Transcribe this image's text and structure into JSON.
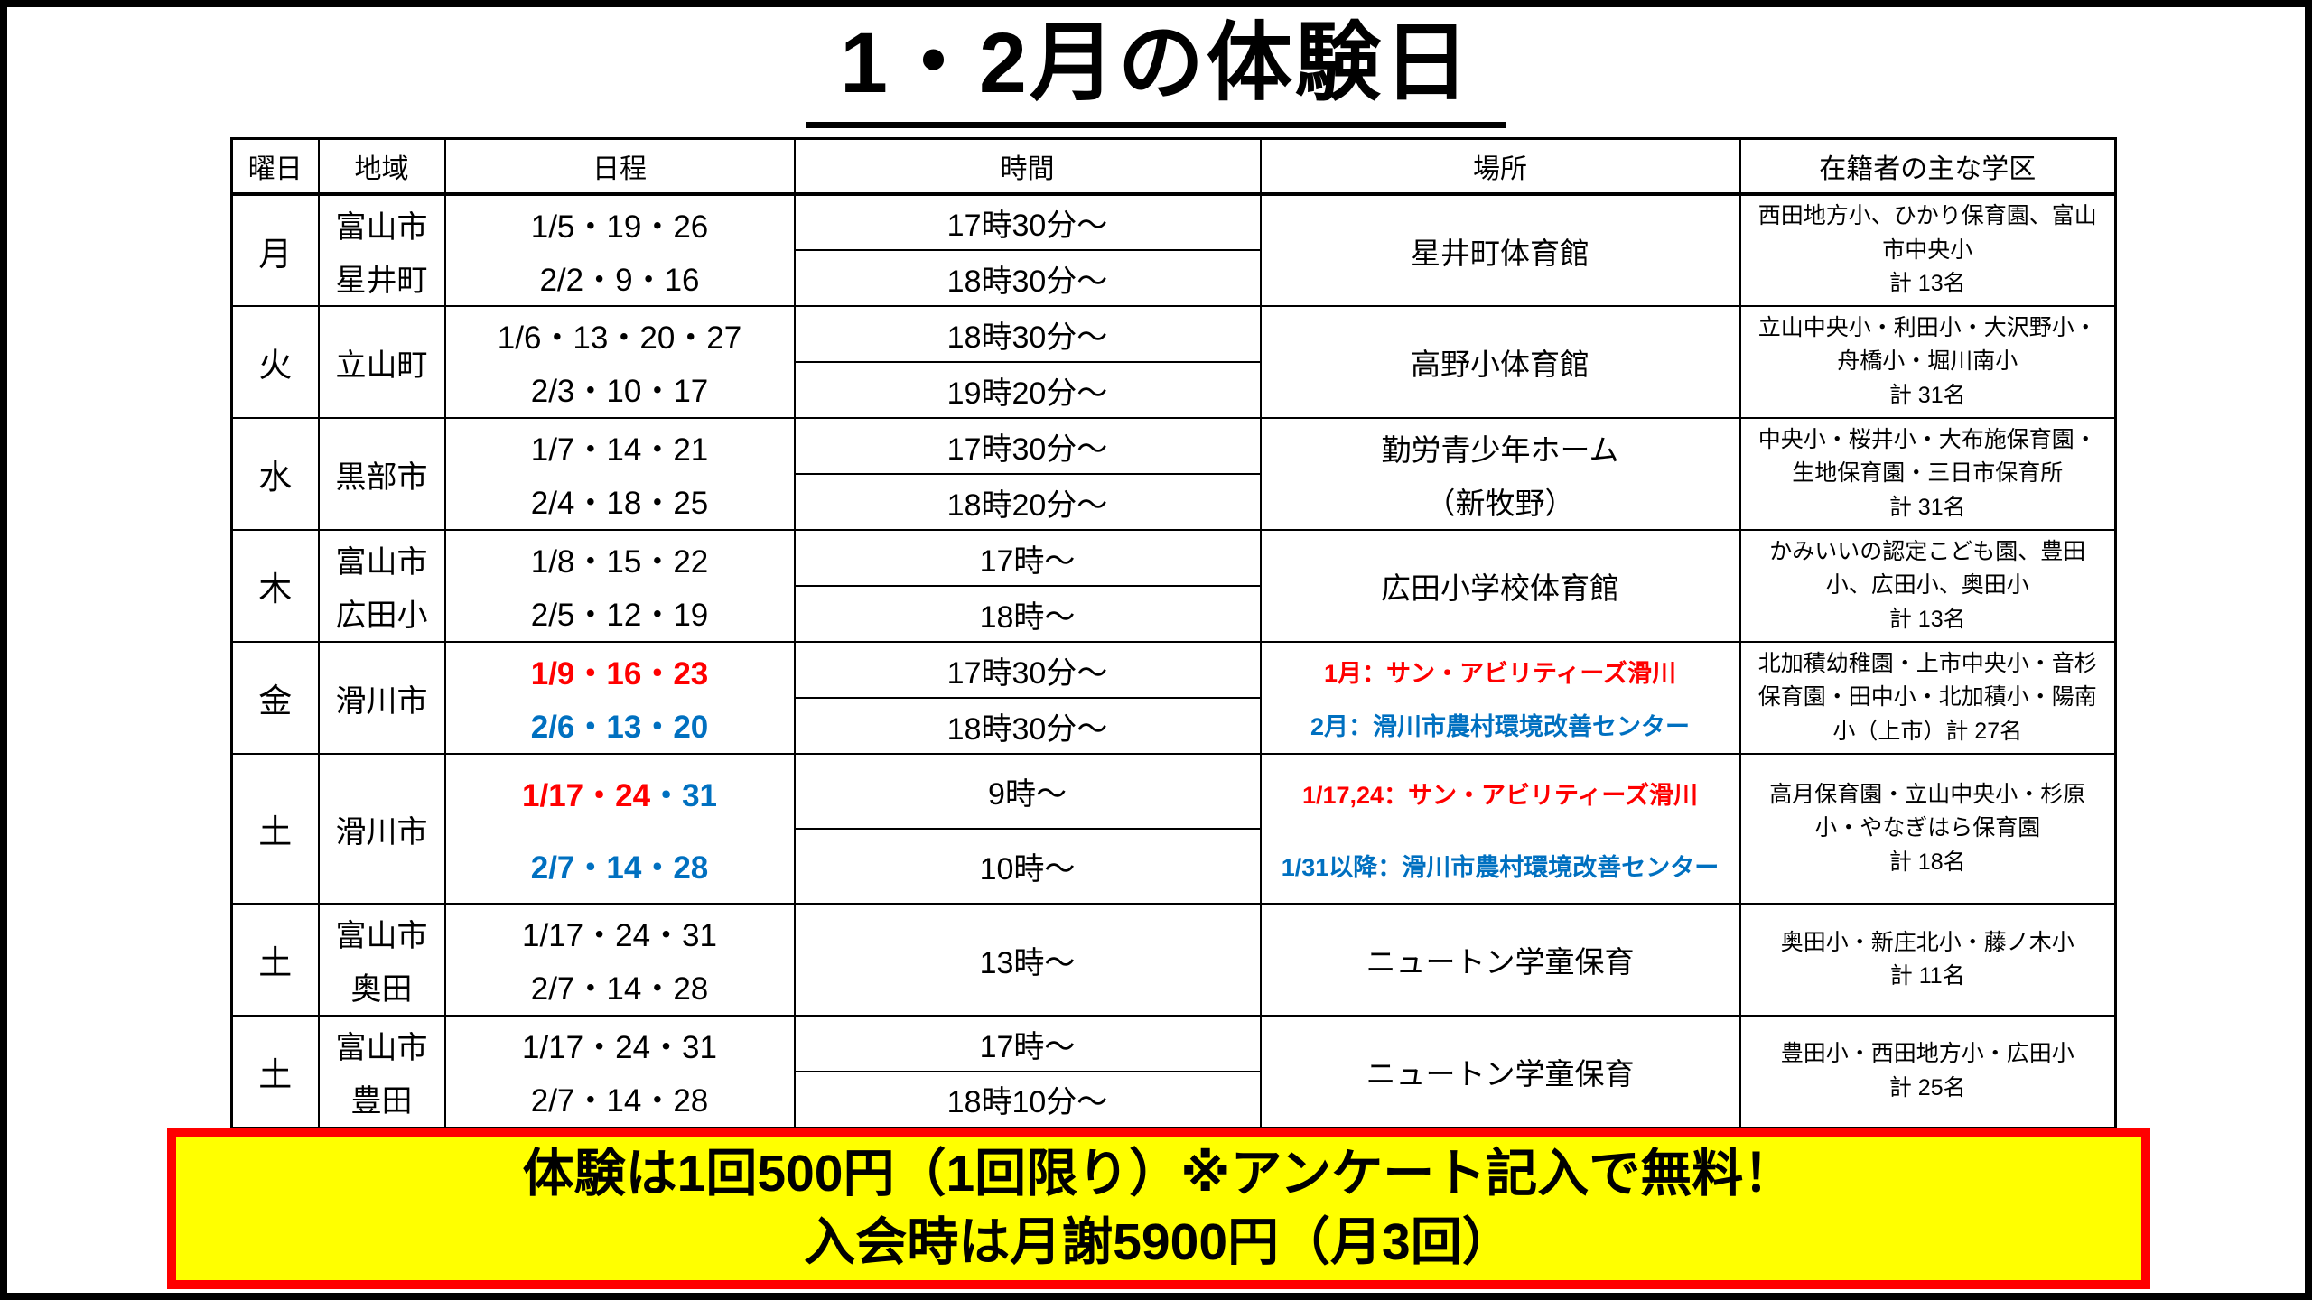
{
  "page": {
    "title": "1・2月の体験日"
  },
  "colors": {
    "black": "#000000",
    "red": "#FF0000",
    "blue": "#0070C0",
    "banner_bg": "#FFFF00",
    "banner_border": "#FF0000"
  },
  "table": {
    "headers": [
      "曜日",
      "地域",
      "日程",
      "時間",
      "場所",
      "在籍者の主な学区"
    ],
    "rows": [
      {
        "day": "月",
        "area": [
          "富山市",
          "星井町"
        ],
        "dates": [
          [
            {
              "t": "1/5・19・26",
              "c": "k"
            }
          ],
          [
            {
              "t": "2/2・9・16",
              "c": "k"
            }
          ]
        ],
        "times": [
          "17時30分～",
          "18時30分～"
        ],
        "place": [
          {
            "t": "星井町体育館",
            "c": "k"
          }
        ],
        "place_small": false,
        "district": "西田地方小、ひかり保育園、富山市中央小",
        "count": "計 13名",
        "tall": false
      },
      {
        "day": "火",
        "area": [
          "立山町"
        ],
        "dates": [
          [
            {
              "t": "1/6・13・20・27",
              "c": "k"
            }
          ],
          [
            {
              "t": "2/3・10・17",
              "c": "k"
            }
          ]
        ],
        "times": [
          "18時30分～",
          "19時20分～"
        ],
        "place": [
          {
            "t": "高野小体育館",
            "c": "k"
          }
        ],
        "place_small": false,
        "district": "立山中央小・利田小・大沢野小・舟橋小・堀川南小",
        "count": "計 31名",
        "tall": false
      },
      {
        "day": "水",
        "area": [
          "黒部市"
        ],
        "dates": [
          [
            {
              "t": "1/7・14・21",
              "c": "k"
            }
          ],
          [
            {
              "t": "2/4・18・25",
              "c": "k"
            }
          ]
        ],
        "times": [
          "17時30分～",
          "18時20分～"
        ],
        "place": [
          {
            "t": "勤労青少年ホーム",
            "c": "k"
          },
          {
            "t": "（新牧野）",
            "c": "k"
          }
        ],
        "place_small": false,
        "district": "中央小・桜井小・大布施保育園・生地保育園・三日市保育所",
        "count": "計 31名",
        "tall": false
      },
      {
        "day": "木",
        "area": [
          "富山市",
          "広田小"
        ],
        "dates": [
          [
            {
              "t": "1/8・15・22",
              "c": "k"
            }
          ],
          [
            {
              "t": "2/5・12・19",
              "c": "k"
            }
          ]
        ],
        "times": [
          "17時～",
          "18時～"
        ],
        "place": [
          {
            "t": "広田小学校体育館",
            "c": "k"
          }
        ],
        "place_small": false,
        "district": "かみいいの認定こども園、豊田小、広田小、奥田小",
        "count": "計 13名",
        "tall": false
      },
      {
        "day": "金",
        "area": [
          "滑川市"
        ],
        "dates": [
          [
            {
              "t": "1/9・16・23",
              "c": "r"
            }
          ],
          [
            {
              "t": "2/6・13・20",
              "c": "b"
            }
          ]
        ],
        "times": [
          "17時30分～",
          "18時30分～"
        ],
        "place": [
          {
            "t": "1月：サン・アビリティーズ滑川",
            "c": "r"
          },
          {
            "t": "2月：滑川市農村環境改善センター",
            "c": "b"
          }
        ],
        "place_small": true,
        "district": "北加積幼稚園・上市中央小・音杉保育園・田中小・北加積小・陽南小（上市）計 27名",
        "count": "",
        "tall": false
      },
      {
        "day": "土",
        "area": [
          "滑川市"
        ],
        "dates": [
          [
            {
              "t": "1/17・24",
              "c": "r"
            },
            {
              "t": "・31",
              "c": "b"
            }
          ],
          [
            {
              "t": "2/7・14・28",
              "c": "b"
            }
          ]
        ],
        "times": [
          "9時～",
          "10時～"
        ],
        "place": [
          {
            "t": "1/17,24：サン・アビリティーズ滑川",
            "c": "r"
          },
          {
            "t": "1/31以降：滑川市農村環境改善センター",
            "c": "b"
          }
        ],
        "place_small": true,
        "district": "高月保育園・立山中央小・杉原小・やなぎはら保育園",
        "count": "計 18名",
        "tall": true
      },
      {
        "day": "土",
        "area": [
          "富山市",
          "奥田"
        ],
        "dates": [
          [
            {
              "t": "1/17・24・31",
              "c": "k"
            }
          ],
          [
            {
              "t": "2/7・14・28",
              "c": "k"
            }
          ]
        ],
        "times": [
          "13時～"
        ],
        "place": [
          {
            "t": "ニュートン学童保育",
            "c": "k"
          }
        ],
        "place_small": false,
        "district": "奥田小・新庄北小・藤ノ木小",
        "count": "計 11名",
        "tall": false
      },
      {
        "day": "土",
        "area": [
          "富山市",
          "豊田"
        ],
        "dates": [
          [
            {
              "t": "1/17・24・31",
              "c": "k"
            }
          ],
          [
            {
              "t": "2/7・14・28",
              "c": "k"
            }
          ]
        ],
        "times": [
          "17時～",
          "18時10分～"
        ],
        "place": [
          {
            "t": "ニュートン学童保育",
            "c": "k"
          }
        ],
        "place_small": false,
        "district": "豊田小・西田地方小・広田小",
        "count": "計 25名",
        "tall": false
      }
    ]
  },
  "banner": {
    "line1": "体験は1回500円（1回限り）※アンケート記入で無料！",
    "line2": "入会時は月謝5900円（月3回）"
  }
}
